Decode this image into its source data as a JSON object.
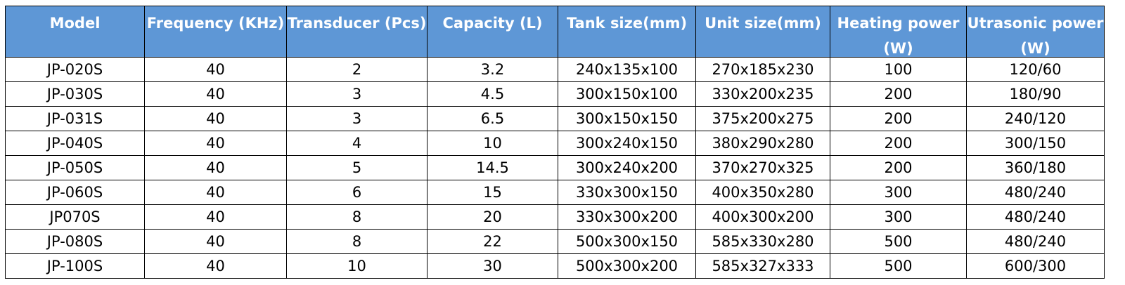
{
  "table": {
    "header": [
      "Model",
      "Frequency (KHz)",
      "Transducer (Pcs)",
      "Capacity (L)",
      "Tank size(mm)",
      "Unit size(mm)",
      "Heating power (W)",
      "Utrasonic power (W)"
    ],
    "rows": [
      [
        "JP-020S",
        "40",
        "2",
        "3.2",
        "240x135x100",
        "270x185x230",
        "100",
        "120/60"
      ],
      [
        "JP-030S",
        "40",
        "3",
        "4.5",
        "300x150x100",
        "330x200x235",
        "200",
        "180/90"
      ],
      [
        "JP-031S",
        "40",
        "3",
        "6.5",
        "300x150x150",
        "375x200x275",
        "200",
        "240/120"
      ],
      [
        "JP-040S",
        "40",
        "4",
        "10",
        "300x240x150",
        "380x290x280",
        "200",
        "300/150"
      ],
      [
        "JP-050S",
        "40",
        "5",
        "14.5",
        "300x240x200",
        "370x270x325",
        "200",
        "360/180"
      ],
      [
        "JP-060S",
        "40",
        "6",
        "15",
        "330x300x150",
        "400x350x280",
        "300",
        "480/240"
      ],
      [
        "JP070S",
        "40",
        "8",
        "20",
        "330x300x200",
        "400x300x200",
        "300",
        "480/240"
      ],
      [
        "JP-080S",
        "40",
        "8",
        "22",
        "500x300x150",
        "585x330x280",
        "500",
        "480/240"
      ],
      [
        "JP-100S",
        "40",
        "10",
        "30",
        "500x300x200",
        "585x327x333",
        "500",
        "600/300"
      ]
    ]
  }
}
